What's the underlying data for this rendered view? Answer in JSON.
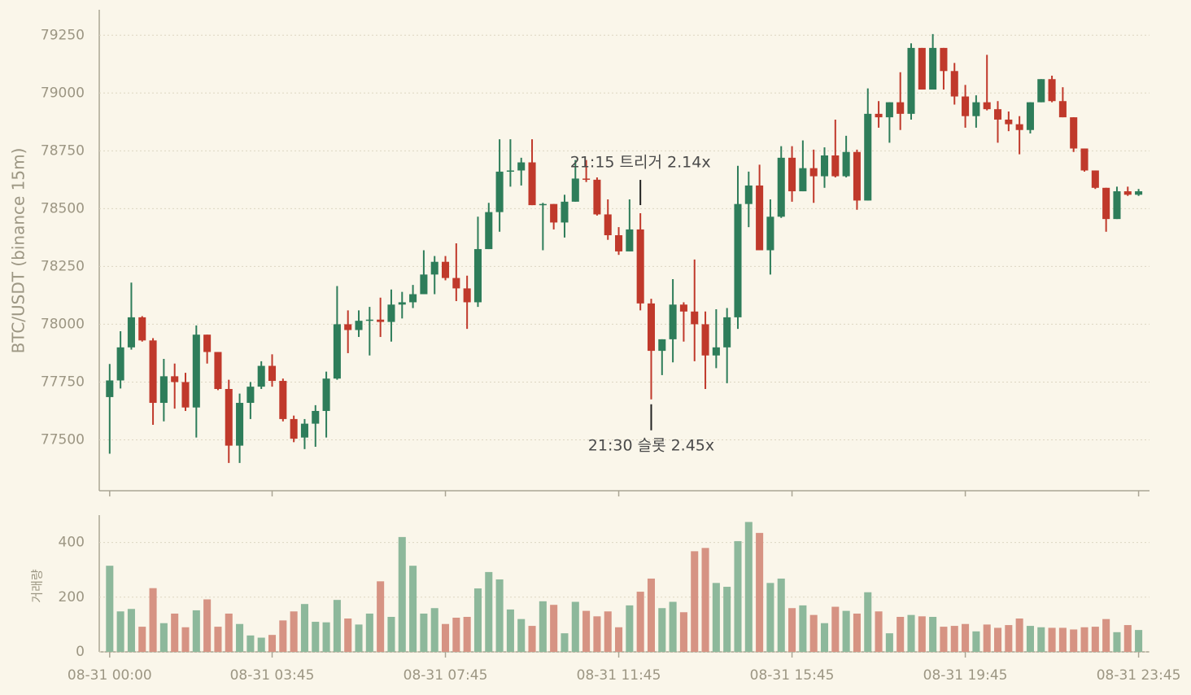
{
  "chart_data": {
    "type": "candlestick",
    "ylabel": "BTC/USDT (binance 15m)",
    "volume_label": "거래량",
    "x": [
      "08-31 00:00",
      "08-31 00:15",
      "08-31 00:30",
      "08-31 00:45",
      "08-31 01:00",
      "08-31 01:15",
      "08-31 01:30",
      "08-31 01:45",
      "08-31 02:00",
      "08-31 02:15",
      "08-31 02:30",
      "08-31 02:45",
      "08-31 03:00",
      "08-31 03:15",
      "08-31 03:30",
      "08-31 03:45",
      "08-31 04:00",
      "08-31 04:15",
      "08-31 04:30",
      "08-31 04:45",
      "08-31 05:00",
      "08-31 05:15",
      "08-31 05:30",
      "08-31 05:45",
      "08-31 06:00",
      "08-31 06:15",
      "08-31 06:30",
      "08-31 06:45",
      "08-31 07:00",
      "08-31 07:15",
      "08-31 07:30",
      "08-31 07:45",
      "08-31 08:00",
      "08-31 08:15",
      "08-31 08:30",
      "08-31 08:45",
      "08-31 09:00",
      "08-31 09:15",
      "08-31 09:30",
      "08-31 09:45",
      "08-31 10:00",
      "08-31 10:15",
      "08-31 10:30",
      "08-31 10:45",
      "08-31 11:00",
      "08-31 11:15",
      "08-31 11:30",
      "08-31 11:45",
      "08-31 12:00",
      "08-31 12:15",
      "08-31 12:30",
      "08-31 12:45",
      "08-31 13:00",
      "08-31 13:15",
      "08-31 13:30",
      "08-31 13:45",
      "08-31 14:00",
      "08-31 14:15",
      "08-31 14:30",
      "08-31 14:45",
      "08-31 15:00",
      "08-31 15:15",
      "08-31 15:30",
      "08-31 15:45",
      "08-31 16:00",
      "08-31 16:15",
      "08-31 16:30",
      "08-31 16:45",
      "08-31 17:00",
      "08-31 17:15",
      "08-31 17:30",
      "08-31 17:45",
      "08-31 18:00",
      "08-31 18:15",
      "08-31 18:30",
      "08-31 18:45",
      "08-31 19:00",
      "08-31 19:15",
      "08-31 19:30",
      "08-31 19:45",
      "08-31 20:00",
      "08-31 20:15",
      "08-31 20:30",
      "08-31 20:45",
      "08-31 21:00",
      "08-31 21:15",
      "08-31 21:30",
      "08-31 21:45",
      "08-31 22:00",
      "08-31 22:15",
      "08-31 22:30",
      "08-31 22:45",
      "08-31 23:00",
      "08-31 23:15",
      "08-31 23:30",
      "08-31 23:45"
    ],
    "open": [
      77685,
      77757,
      77900,
      78030,
      77930,
      77660,
      77775,
      77750,
      77640,
      77955,
      77880,
      77720,
      77475,
      77660,
      77730,
      77820,
      77755,
      77590,
      77510,
      77570,
      77625,
      77765,
      78000,
      77975,
      78015,
      78020,
      78010,
      78085,
      78095,
      78130,
      78215,
      78270,
      78200,
      78155,
      78095,
      78325,
      78485,
      78660,
      78665,
      78700,
      78515,
      78520,
      78440,
      78530,
      78630,
      78625,
      78475,
      78385,
      78315,
      78410,
      78090,
      77885,
      77935,
      78085,
      78055,
      78000,
      77865,
      77900,
      78030,
      78520,
      78600,
      78320,
      78465,
      78720,
      78575,
      78675,
      78640,
      78730,
      78640,
      78745,
      78535,
      78910,
      78895,
      78960,
      78910,
      79195,
      79015,
      79195,
      79095,
      78985,
      78900,
      78960,
      78930,
      78885,
      78865,
      78840,
      78960,
      79060,
      78965,
      78895,
      78760,
      78665,
      78590,
      78455,
      78575,
      78560
    ],
    "high": [
      77828,
      77970,
      78180,
      78035,
      77940,
      77850,
      77830,
      77790,
      77995,
      77955,
      77880,
      77760,
      77700,
      77750,
      77840,
      77870,
      77765,
      77605,
      77590,
      77650,
      77795,
      78165,
      78060,
      78060,
      78075,
      78115,
      78150,
      78140,
      78170,
      78320,
      78295,
      78295,
      78350,
      78210,
      78465,
      78525,
      78800,
      78800,
      78720,
      78800,
      78525,
      78520,
      78560,
      78710,
      78710,
      78635,
      78540,
      78420,
      78540,
      78480,
      78110,
      77935,
      78195,
      78095,
      78280,
      78055,
      78065,
      78070,
      78685,
      78660,
      78690,
      78540,
      78770,
      78770,
      78795,
      78755,
      78765,
      78885,
      78815,
      78755,
      79020,
      78965,
      78960,
      79090,
      79215,
      79195,
      79255,
      79195,
      79130,
      79035,
      78990,
      79165,
      78965,
      78920,
      78900,
      78960,
      79060,
      79075,
      79025,
      78895,
      78760,
      78665,
      78590,
      78595,
      78595,
      78585
    ],
    "low": [
      77440,
      77722,
      77890,
      77925,
      77565,
      77580,
      77635,
      77625,
      77510,
      77830,
      77715,
      77400,
      77400,
      77590,
      77720,
      77730,
      77580,
      77490,
      77460,
      77470,
      77510,
      77760,
      77875,
      77945,
      77865,
      77945,
      77925,
      78025,
      78070,
      78130,
      78130,
      78190,
      78100,
      77980,
      78075,
      78325,
      78400,
      78595,
      78600,
      78515,
      78320,
      78410,
      78375,
      78530,
      78615,
      78470,
      78365,
      78300,
      78315,
      78060,
      77675,
      77780,
      77835,
      77925,
      77840,
      77720,
      77810,
      77745,
      77980,
      78420,
      78320,
      78215,
      78460,
      78530,
      78575,
      78525,
      78590,
      78635,
      78635,
      78495,
      78535,
      78850,
      78785,
      78840,
      78885,
      79015,
      79015,
      79015,
      78950,
      78850,
      78850,
      78925,
      78785,
      78835,
      78735,
      78825,
      78960,
      78960,
      78895,
      78745,
      78660,
      78585,
      78400,
      78455,
      78555,
      78555
    ],
    "close": [
      77757,
      77900,
      78030,
      77930,
      77660,
      77775,
      77750,
      77640,
      77955,
      77880,
      77720,
      77475,
      77660,
      77730,
      77820,
      77755,
      77590,
      77505,
      77570,
      77625,
      77765,
      78000,
      77975,
      78015,
      78020,
      78010,
      78085,
      78095,
      78130,
      78215,
      78270,
      78200,
      78155,
      78095,
      78325,
      78485,
      78660,
      78665,
      78700,
      78515,
      78520,
      78440,
      78530,
      78630,
      78625,
      78475,
      78385,
      78315,
      78410,
      78090,
      77885,
      77935,
      78085,
      78055,
      78000,
      77865,
      77900,
      78030,
      78520,
      78600,
      78320,
      78465,
      78720,
      78575,
      78675,
      78640,
      78730,
      78640,
      78745,
      78535,
      78910,
      78895,
      78960,
      78910,
      79195,
      79015,
      79195,
      79095,
      78985,
      78900,
      78960,
      78930,
      78885,
      78865,
      78840,
      78960,
      79060,
      78965,
      78895,
      78760,
      78665,
      78590,
      78455,
      78575,
      78560,
      78575
    ],
    "volume": [
      315,
      148,
      157,
      92,
      233,
      105,
      140,
      90,
      152,
      192,
      92,
      140,
      102,
      60,
      52,
      62,
      115,
      148,
      175,
      110,
      108,
      190,
      122,
      100,
      140,
      258,
      128,
      420,
      315,
      140,
      160,
      102,
      125,
      128,
      232,
      292,
      265,
      155,
      120,
      95,
      185,
      172,
      68,
      183,
      150,
      130,
      148,
      90,
      170,
      220,
      268,
      160,
      183,
      145,
      368,
      380,
      252,
      238,
      405,
      475,
      435,
      252,
      268,
      160,
      170,
      135,
      105,
      165,
      150,
      140,
      218,
      148,
      68,
      128,
      135,
      130,
      128,
      92,
      95,
      102,
      75,
      100,
      88,
      98,
      122,
      95,
      90,
      88,
      88,
      82,
      90,
      92,
      120,
      72,
      98,
      80
    ],
    "up_color": "#2e7d5a",
    "down_color": "#c0392b",
    "volume_up_color": "#8db89b",
    "volume_down_color": "#d69383",
    "ylim": [
      77280,
      79360
    ],
    "yticks": [
      77500,
      77750,
      78000,
      78250,
      78500,
      78750,
      79000,
      79250
    ],
    "volume_ylim": [
      0,
      500
    ],
    "volume_yticks": [
      0,
      200,
      400
    ],
    "xticks": [
      "08-31 00:00",
      "08-31 03:45",
      "08-31 07:45",
      "08-31 11:45",
      "08-31 15:45",
      "08-31 19:45",
      "08-31 23:45"
    ],
    "grid": true,
    "annotations": [
      {
        "text": "21:15 트리거 2.14x",
        "x": "08-31 12:15",
        "anchor": "high"
      },
      {
        "text": "21:30 슬롯 2.45x",
        "x": "08-31 12:30",
        "anchor": "low"
      }
    ]
  }
}
